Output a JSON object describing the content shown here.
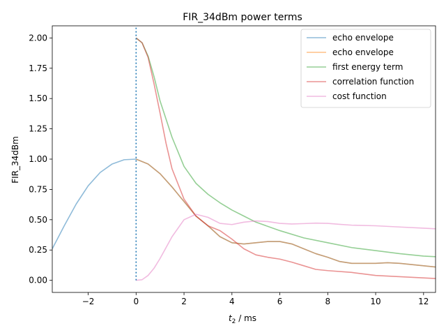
{
  "chart_data": {
    "type": "line",
    "title": "FIR_34dBm power terms",
    "xlabel_main": "t",
    "xlabel_sub": "2",
    "xlabel_unit": " / ms",
    "ylabel": "FIR_34dBm",
    "xlim": [
      -3.5,
      12.5
    ],
    "ylim": [
      -0.1,
      2.1
    ],
    "xticks": [
      -2,
      0,
      2,
      4,
      6,
      8,
      10,
      12
    ],
    "xtick_labels": [
      "−2",
      "0",
      "2",
      "4",
      "6",
      "8",
      "10",
      "12"
    ],
    "yticks": [
      0.0,
      0.25,
      0.5,
      0.75,
      1.0,
      1.25,
      1.5,
      1.75,
      2.0
    ],
    "ytick_labels": [
      "0.00",
      "0.25",
      "0.50",
      "0.75",
      "1.00",
      "1.25",
      "1.50",
      "1.75",
      "2.00"
    ],
    "vline": {
      "x": 0,
      "ymin": 0,
      "ymax": 2.1,
      "color": "#1f77b4",
      "style": "dotted"
    },
    "legend_position": "top-right",
    "series": [
      {
        "name": "echo envelope",
        "color": "#1f77b4",
        "x": [
          -3.5,
          -3.0,
          -2.5,
          -2.0,
          -1.5,
          -1.0,
          -0.5,
          0.0,
          0.5,
          1.0,
          1.5,
          2.0,
          2.5,
          3.0,
          3.5,
          4.0,
          4.5,
          5.0,
          5.5,
          6.0,
          6.5,
          7.0,
          7.5,
          8.0,
          8.5,
          9.0,
          9.5,
          10.0,
          10.5,
          11.0,
          11.5,
          12.0,
          12.5
        ],
        "y": [
          0.26,
          0.45,
          0.63,
          0.78,
          0.89,
          0.96,
          0.995,
          1.0,
          0.96,
          0.88,
          0.77,
          0.65,
          0.53,
          0.45,
          0.36,
          0.31,
          0.3,
          0.31,
          0.32,
          0.32,
          0.3,
          0.26,
          0.22,
          0.19,
          0.155,
          0.14,
          0.14,
          0.14,
          0.145,
          0.14,
          0.13,
          0.12,
          0.11
        ]
      },
      {
        "name": "echo envelope",
        "color": "#ff7f0e",
        "x": [
          0.0,
          0.5,
          1.0,
          1.5,
          2.0,
          2.5,
          3.0,
          3.5,
          4.0,
          4.5,
          5.0,
          5.5,
          6.0,
          6.5,
          7.0,
          7.5,
          8.0,
          8.5,
          9.0,
          9.5,
          10.0,
          10.5,
          11.0,
          11.5,
          12.0,
          12.5
        ],
        "y": [
          1.0,
          0.96,
          0.88,
          0.77,
          0.65,
          0.53,
          0.45,
          0.36,
          0.31,
          0.3,
          0.31,
          0.32,
          0.32,
          0.3,
          0.26,
          0.22,
          0.19,
          0.155,
          0.14,
          0.14,
          0.14,
          0.145,
          0.14,
          0.13,
          0.12,
          0.11
        ]
      },
      {
        "name": "first energy term",
        "color": "#2ca02c",
        "x": [
          0.0,
          0.25,
          0.5,
          0.75,
          1.0,
          1.5,
          2.0,
          2.5,
          3.0,
          3.5,
          4.0,
          4.5,
          5.0,
          6.0,
          7.0,
          8.0,
          9.0,
          10.0,
          11.0,
          12.0,
          12.5
        ],
        "y": [
          2.0,
          1.96,
          1.85,
          1.68,
          1.48,
          1.18,
          0.94,
          0.8,
          0.71,
          0.64,
          0.58,
          0.53,
          0.48,
          0.41,
          0.35,
          0.31,
          0.27,
          0.245,
          0.22,
          0.2,
          0.195
        ]
      },
      {
        "name": "correlation function",
        "color": "#d62728",
        "x": [
          0.0,
          0.25,
          0.5,
          0.75,
          1.0,
          1.25,
          1.5,
          2.0,
          2.5,
          3.0,
          3.5,
          4.0,
          4.5,
          5.0,
          5.5,
          6.0,
          6.5,
          7.0,
          7.5,
          8.0,
          9.0,
          10.0,
          11.0,
          12.0,
          12.5
        ],
        "y": [
          2.0,
          1.96,
          1.84,
          1.62,
          1.38,
          1.13,
          0.92,
          0.67,
          0.53,
          0.45,
          0.41,
          0.34,
          0.26,
          0.21,
          0.19,
          0.175,
          0.15,
          0.12,
          0.09,
          0.08,
          0.065,
          0.04,
          0.03,
          0.02,
          0.015
        ]
      },
      {
        "name": "cost function",
        "color": "#e377c2",
        "x": [
          0.0,
          0.25,
          0.5,
          0.75,
          1.0,
          1.5,
          2.0,
          2.5,
          3.0,
          3.5,
          4.0,
          4.5,
          5.0,
          5.5,
          6.0,
          6.5,
          7.0,
          7.5,
          8.0,
          8.5,
          9.0,
          10.0,
          11.0,
          12.0,
          12.5
        ],
        "y": [
          0.0,
          0.005,
          0.04,
          0.1,
          0.18,
          0.36,
          0.5,
          0.545,
          0.52,
          0.47,
          0.46,
          0.48,
          0.49,
          0.485,
          0.47,
          0.465,
          0.468,
          0.472,
          0.47,
          0.462,
          0.455,
          0.45,
          0.44,
          0.43,
          0.425
        ]
      }
    ]
  }
}
